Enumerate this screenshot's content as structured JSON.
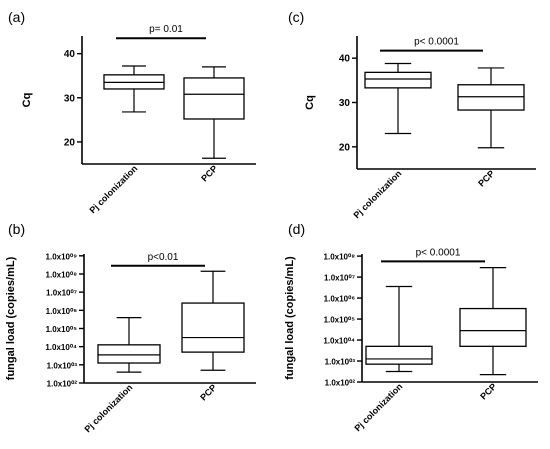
{
  "chart_data": [
    {
      "type": "box",
      "panel": "(a)",
      "ylabel": "Cq",
      "ylim": [
        15,
        44
      ],
      "yscale": "linear",
      "yticks": [
        {
          "v": 20,
          "label": "20"
        },
        {
          "v": 30,
          "label": "30"
        },
        {
          "v": 40,
          "label": "40"
        }
      ],
      "categories": [
        "Pj colonization",
        "PCP"
      ],
      "boxes": [
        {
          "min": 26.8,
          "q1": 32.0,
          "median": 33.5,
          "q3": 35.2,
          "max": 37.2
        },
        {
          "min": 16.3,
          "q1": 25.2,
          "median": 30.8,
          "q3": 34.5,
          "max": 37.0
        }
      ],
      "annotation": "p= 0.01",
      "annotation_y": 43.5
    },
    {
      "type": "box",
      "panel": "(c)",
      "ylabel": "Cq",
      "ylim": [
        15,
        45
      ],
      "yscale": "linear",
      "yticks": [
        {
          "v": 20,
          "label": "20"
        },
        {
          "v": 30,
          "label": "30"
        },
        {
          "v": 40,
          "label": "40"
        }
      ],
      "categories": [
        "Pj colonization",
        "PCP"
      ],
      "boxes": [
        {
          "min": 23.0,
          "q1": 33.3,
          "median": 35.3,
          "q3": 36.8,
          "max": 38.8
        },
        {
          "min": 19.8,
          "q1": 28.3,
          "median": 31.3,
          "q3": 34.0,
          "max": 37.8
        }
      ],
      "annotation": "p< 0.0001",
      "annotation_y": 41.7
    },
    {
      "type": "box",
      "panel": "(b)",
      "ylabel": "fungal load (copies/mL)",
      "ylim": [
        2,
        9.1
      ],
      "yscale": "log10",
      "yticks": [
        {
          "v": 2,
          "label": "1.0x10⁰²"
        },
        {
          "v": 3,
          "label": "1.0x10⁰³"
        },
        {
          "v": 4,
          "label": "1.0x10⁰⁴"
        },
        {
          "v": 5,
          "label": "1.0x10⁰⁵"
        },
        {
          "v": 6,
          "label": "1.0x10⁰⁶"
        },
        {
          "v": 7,
          "label": "1.0x10⁰⁷"
        },
        {
          "v": 8,
          "label": "1.0x10⁰⁸"
        },
        {
          "v": 9,
          "label": "1.0x10⁰⁹"
        }
      ],
      "categories": [
        "Pj colonization",
        "PCP"
      ],
      "boxes": [
        {
          "min": 2.6,
          "q1": 3.1,
          "median": 3.55,
          "q3": 4.1,
          "max": 5.6
        },
        {
          "min": 2.7,
          "q1": 3.7,
          "median": 4.5,
          "q3": 6.4,
          "max": 8.15
        }
      ],
      "annotation": "p<0.01",
      "annotation_y": 8.45
    },
    {
      "type": "box",
      "panel": "(d)",
      "ylabel": "fungal load (copies/mL)",
      "ylim": [
        2,
        8.1
      ],
      "yscale": "log10",
      "yticks": [
        {
          "v": 2,
          "label": "1.0x10⁰²"
        },
        {
          "v": 3,
          "label": "1.0x10⁰³"
        },
        {
          "v": 4,
          "label": "1.0x10⁰⁴"
        },
        {
          "v": 5,
          "label": "1.0x10⁰⁵"
        },
        {
          "v": 6,
          "label": "1.0x10⁰⁶"
        },
        {
          "v": 7,
          "label": "1.0x10⁰⁷"
        },
        {
          "v": 8,
          "label": "1.0x10⁰⁸"
        }
      ],
      "categories": [
        "Pj colonization",
        "PCP"
      ],
      "boxes": [
        {
          "min": 2.5,
          "q1": 2.85,
          "median": 3.1,
          "q3": 3.7,
          "max": 6.55
        },
        {
          "min": 2.35,
          "q1": 3.7,
          "median": 4.45,
          "q3": 5.5,
          "max": 7.45
        }
      ],
      "annotation": "p< 0.0001",
      "annotation_y": 7.75
    }
  ]
}
